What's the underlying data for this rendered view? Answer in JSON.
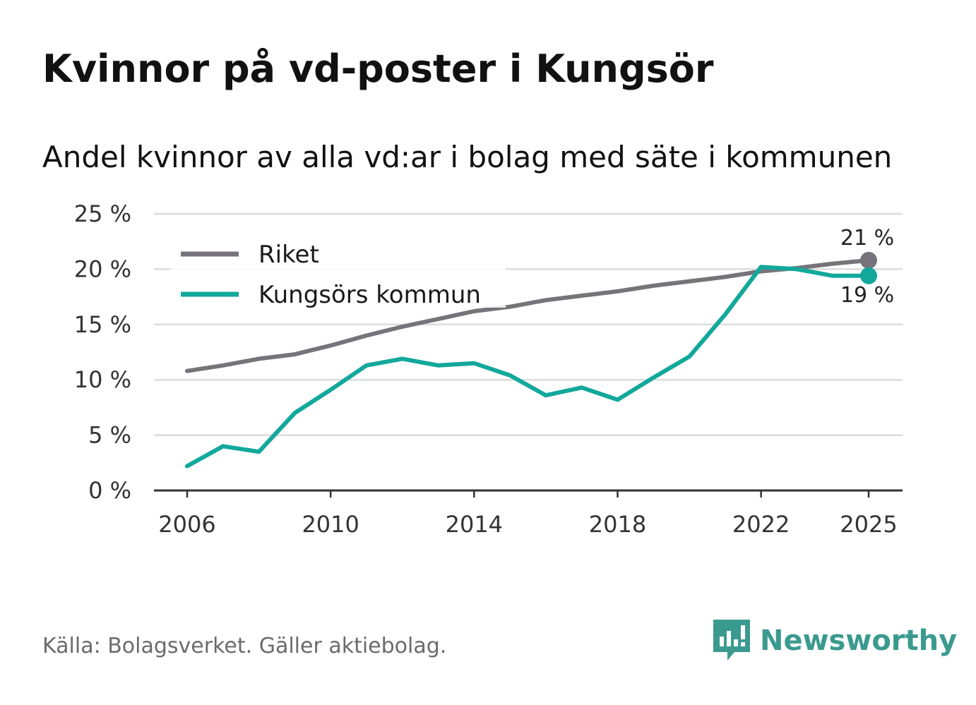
{
  "title": "Kvinnor på vd-poster i Kungsör",
  "subtitle": "Andel kvinnor av alla vd:ar i bolag med säte i kommunen",
  "source": "Källa: Bolagsverket. Gäller aktiebolag.",
  "logo": {
    "text": "Newsworthy",
    "color": "#3b9a8f",
    "icon": "newsworthy-logo-icon"
  },
  "chart_data": {
    "type": "line",
    "title": "Andel kvinnor av alla vd:ar i bolag med säte i kommunen",
    "xlabel": "",
    "ylabel": "",
    "xlim": [
      2006,
      2025
    ],
    "ylim": [
      0,
      25
    ],
    "x_ticks": [
      2006,
      2010,
      2014,
      2018,
      2022,
      2025
    ],
    "x_tick_labels": [
      "2006",
      "2010",
      "2014",
      "2018",
      "2022",
      "2025"
    ],
    "y_ticks": [
      0,
      5,
      10,
      15,
      20,
      25
    ],
    "y_tick_labels": [
      "0 %",
      "5 %",
      "10 %",
      "15 %",
      "20 %",
      "25 %"
    ],
    "grid": true,
    "legend_position": "top-left",
    "x": [
      2006,
      2007,
      2008,
      2009,
      2010,
      2011,
      2012,
      2013,
      2014,
      2015,
      2016,
      2017,
      2018,
      2019,
      2020,
      2021,
      2022,
      2023,
      2024,
      2025
    ],
    "series": [
      {
        "name": "Riket",
        "color": "#76747a",
        "values": [
          10.8,
          11.3,
          11.9,
          12.3,
          13.1,
          14.0,
          14.8,
          15.5,
          16.2,
          16.6,
          17.2,
          17.6,
          18.0,
          18.5,
          18.9,
          19.3,
          19.8,
          20.1,
          20.5,
          20.8
        ],
        "end_label": "21 %"
      },
      {
        "name": "Kungsörs kommun",
        "color": "#12a89b",
        "values": [
          2.2,
          4.0,
          3.5,
          7.0,
          9.1,
          11.3,
          11.9,
          11.3,
          11.5,
          10.4,
          8.6,
          9.3,
          8.2,
          10.2,
          12.1,
          15.9,
          20.2,
          20.0,
          19.4,
          19.4
        ],
        "end_label": "19 %"
      }
    ]
  }
}
